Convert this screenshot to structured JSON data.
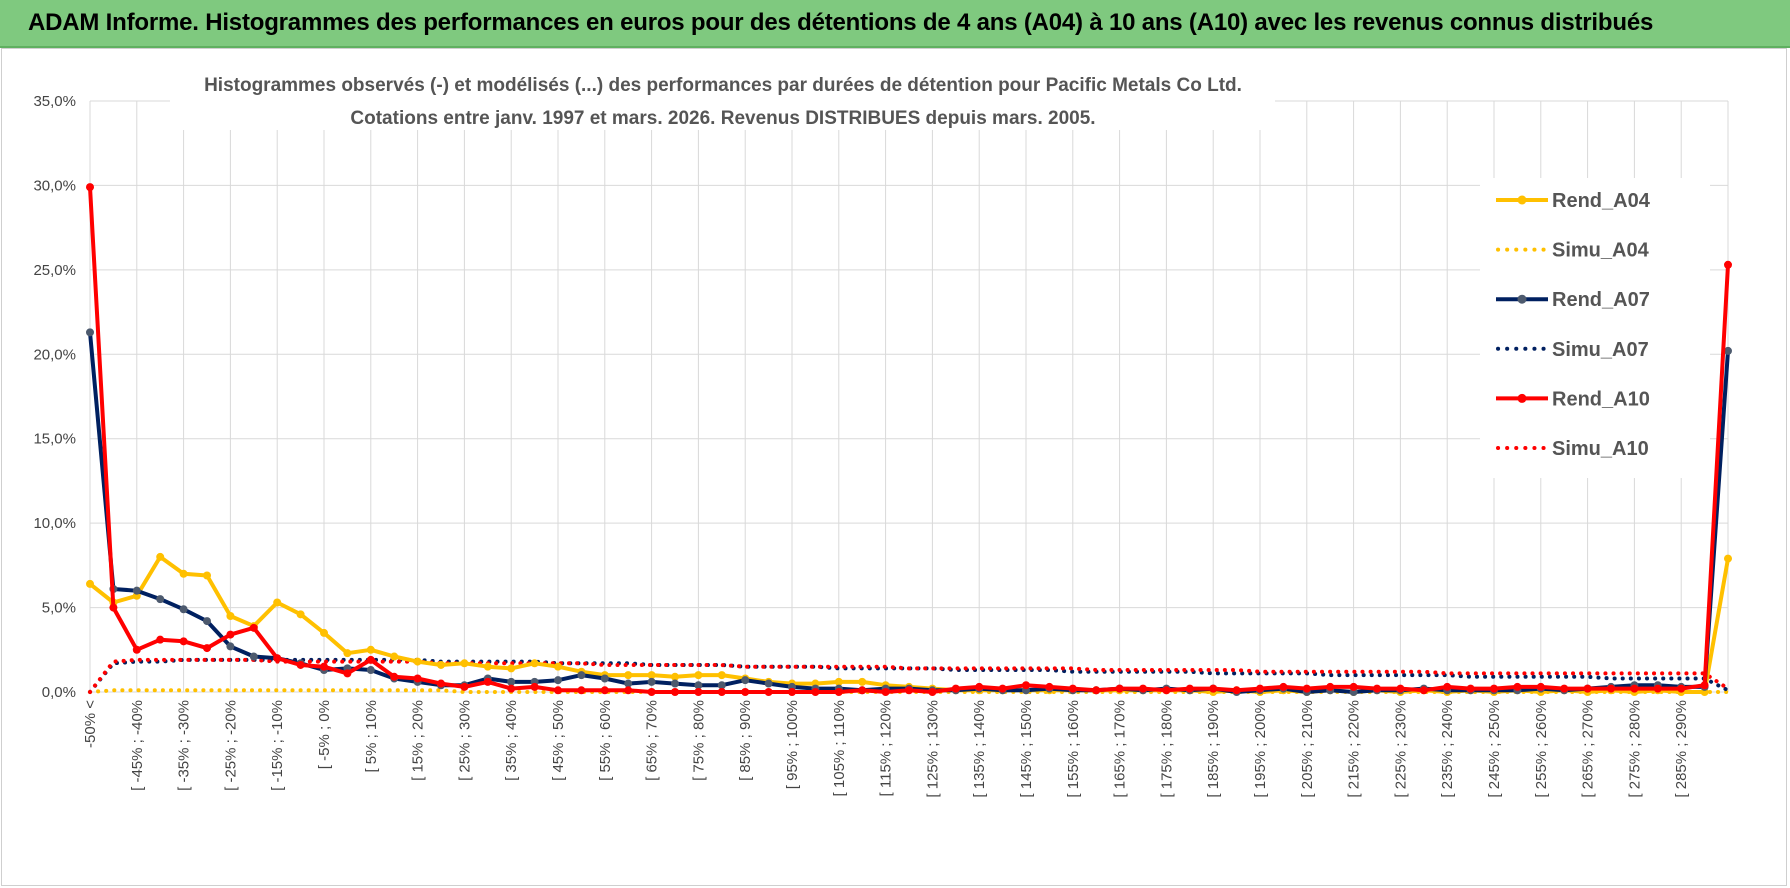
{
  "banner": {
    "title": "ADAM Informe. Histogrammes des performances en euros pour des détentions de 4 ans (A04) à 10 ans (A10) avec les revenus connus distribués"
  },
  "chart_data": {
    "type": "line",
    "title_lines": [
      "Histogrammes observés (-) et modélisés (...) des performances par durées de détention pour Pacific Metals Co Ltd.",
      "Cotations entre janv. 1997 et mars. 2026. Revenus DISTRIBUES depuis mars. 2005."
    ],
    "ylim": [
      0,
      35
    ],
    "y_ticks": [
      "0,0%",
      "5,0%",
      "10,0%",
      "15,0%",
      "20,0%",
      "25,0%",
      "30,0%",
      "35,0%"
    ],
    "y_tick_values": [
      0,
      5,
      10,
      15,
      20,
      25,
      30,
      35
    ],
    "grid": true,
    "legend_position": "right",
    "x_tick_labels": [
      "-50% <",
      "[ -45% ; -40%",
      "[ -35% ; -30%",
      "[ -25% ; -20%",
      "[ -15% ; -10%",
      "[ -5% ; 0%",
      "[ 5% ; 10%",
      "[ 15% ; 20%",
      "[ 25% ; 30%",
      "[ 35% ; 40%",
      "[ 45% ; 50%",
      "[ 55% ; 60%",
      "[ 65% ; 70%",
      "[ 75% ; 80%",
      "[ 85% ; 90%",
      "[ 95% ; 100%",
      "[ 105% ; 110%",
      "[ 115% ; 120%",
      "[ 125% ; 130%",
      "[ 135% ; 140%",
      "[ 145% ; 150%",
      "[ 155% ; 160%",
      "[ 165% ; 170%",
      "[ 175% ; 180%",
      "[ 185% ; 190%",
      "[ 195% ; 200%",
      "[ 205% ; 210%",
      "[ 215% ; 220%",
      "[ 225% ; 230%",
      "[ 235% ; 240%",
      "[ 245% ; 250%",
      "[ 255% ; 260%",
      "[ 265% ; 270%",
      "[ 275% ; 280%",
      "[ 285% ; 290%"
    ],
    "series": [
      {
        "name": "Rend_A04",
        "color": "#ffc000",
        "style": "solid",
        "values": [
          6.4,
          5.3,
          5.7,
          8.0,
          7.0,
          6.9,
          4.5,
          3.9,
          5.3,
          4.6,
          3.5,
          2.3,
          2.5,
          2.1,
          1.8,
          1.6,
          1.7,
          1.5,
          1.4,
          1.7,
          1.5,
          1.2,
          1.0,
          1.0,
          1.0,
          0.9,
          1.0,
          1.0,
          0.8,
          0.6,
          0.5,
          0.5,
          0.6,
          0.6,
          0.4,
          0.3,
          0.2,
          0.1,
          0.1,
          0.1,
          0.1,
          0.1,
          0.1,
          0.1,
          0.1,
          0.1,
          0.1,
          0.1,
          0.0,
          0.1,
          0.0,
          0.1,
          0.0,
          0.1,
          0.0,
          0.1,
          0.0,
          0.1,
          0.0,
          0.1,
          0.0,
          0.1,
          0.0,
          0.1,
          0.0,
          0.1,
          0.0,
          0.1,
          0.0,
          0.0,
          7.9
        ]
      },
      {
        "name": "Simu_A04",
        "color": "#ffc000",
        "style": "dotted",
        "values": [
          0.0,
          0.1,
          0.1,
          0.1,
          0.1,
          0.1,
          0.1,
          0.1,
          0.1,
          0.1,
          0.1,
          0.1,
          0.1,
          0.1,
          0.1,
          0.1,
          0.0,
          0.0,
          0.0,
          0.0,
          0.0,
          0.0,
          0.0,
          0.0,
          0.0,
          0.0,
          0.0,
          0.0,
          0.0,
          0.0,
          0.0,
          0.0,
          0.0,
          0.0,
          0.0,
          0.0,
          0.0,
          0.0,
          0.0,
          0.0,
          0.0,
          0.0,
          0.0,
          0.0,
          0.0,
          0.0,
          0.0,
          0.0,
          0.0,
          0.0,
          0.0,
          0.0,
          0.0,
          0.0,
          0.0,
          0.0,
          0.0,
          0.0,
          0.0,
          0.0,
          0.0,
          0.0,
          0.0,
          0.0,
          0.0,
          0.0,
          0.0,
          0.0,
          0.0,
          0.0,
          0.0
        ]
      },
      {
        "name": "Rend_A07",
        "color": "#002060",
        "marker_color": "#4d5a6e",
        "style": "solid",
        "values": [
          21.3,
          6.1,
          6.0,
          5.5,
          4.9,
          4.2,
          2.7,
          2.1,
          2.0,
          1.7,
          1.3,
          1.4,
          1.3,
          0.8,
          0.6,
          0.4,
          0.4,
          0.8,
          0.6,
          0.6,
          0.7,
          1.0,
          0.8,
          0.5,
          0.6,
          0.5,
          0.4,
          0.4,
          0.7,
          0.5,
          0.3,
          0.2,
          0.2,
          0.1,
          0.2,
          0.2,
          0.1,
          0.1,
          0.2,
          0.1,
          0.1,
          0.2,
          0.1,
          0.1,
          0.2,
          0.1,
          0.2,
          0.1,
          0.2,
          0.0,
          0.1,
          0.2,
          0.0,
          0.1,
          0.0,
          0.1,
          0.1,
          0.2,
          0.1,
          0.1,
          0.1,
          0.1,
          0.2,
          0.1,
          0.2,
          0.3,
          0.4,
          0.4,
          0.3,
          0.3,
          20.2
        ]
      },
      {
        "name": "Simu_A07",
        "color": "#002060",
        "style": "dotted",
        "values": [
          0.0,
          1.7,
          1.8,
          1.8,
          1.9,
          1.9,
          1.9,
          1.9,
          1.9,
          1.9,
          1.9,
          1.9,
          1.9,
          1.9,
          1.9,
          1.8,
          1.8,
          1.8,
          1.8,
          1.8,
          1.7,
          1.7,
          1.7,
          1.7,
          1.6,
          1.6,
          1.6,
          1.6,
          1.5,
          1.5,
          1.5,
          1.5,
          1.4,
          1.4,
          1.4,
          1.4,
          1.4,
          1.3,
          1.3,
          1.3,
          1.3,
          1.3,
          1.2,
          1.2,
          1.2,
          1.2,
          1.2,
          1.2,
          1.1,
          1.1,
          1.1,
          1.1,
          1.1,
          1.0,
          1.0,
          1.0,
          1.0,
          1.0,
          1.0,
          0.9,
          0.9,
          0.9,
          0.9,
          0.9,
          0.9,
          0.8,
          0.8,
          0.8,
          0.8,
          0.8,
          0.1
        ]
      },
      {
        "name": "Rend_A10",
        "color": "#ff0000",
        "style": "solid",
        "values": [
          29.9,
          5.0,
          2.5,
          3.1,
          3.0,
          2.6,
          3.4,
          3.8,
          2.0,
          1.6,
          1.5,
          1.1,
          1.9,
          0.9,
          0.8,
          0.5,
          0.3,
          0.6,
          0.2,
          0.3,
          0.1,
          0.1,
          0.1,
          0.1,
          0.0,
          0.0,
          0.0,
          0.0,
          0.0,
          0.0,
          0.0,
          0.0,
          0.0,
          0.1,
          0.0,
          0.1,
          0.0,
          0.2,
          0.3,
          0.2,
          0.4,
          0.3,
          0.2,
          0.1,
          0.2,
          0.2,
          0.1,
          0.2,
          0.2,
          0.1,
          0.2,
          0.3,
          0.2,
          0.3,
          0.3,
          0.2,
          0.2,
          0.1,
          0.3,
          0.2,
          0.2,
          0.3,
          0.3,
          0.2,
          0.2,
          0.2,
          0.2,
          0.2,
          0.2,
          0.4,
          25.3
        ]
      },
      {
        "name": "Simu_A10",
        "color": "#ff0000",
        "style": "dotted",
        "values": [
          0.0,
          1.8,
          1.9,
          1.9,
          1.9,
          1.9,
          1.9,
          1.9,
          1.8,
          1.8,
          1.8,
          1.8,
          1.8,
          1.8,
          1.8,
          1.7,
          1.7,
          1.7,
          1.7,
          1.7,
          1.7,
          1.7,
          1.6,
          1.6,
          1.6,
          1.6,
          1.6,
          1.6,
          1.5,
          1.5,
          1.5,
          1.5,
          1.5,
          1.5,
          1.5,
          1.4,
          1.4,
          1.4,
          1.4,
          1.4,
          1.4,
          1.4,
          1.4,
          1.3,
          1.3,
          1.3,
          1.3,
          1.3,
          1.3,
          1.3,
          1.2,
          1.2,
          1.2,
          1.2,
          1.2,
          1.2,
          1.2,
          1.2,
          1.1,
          1.1,
          1.1,
          1.1,
          1.1,
          1.1,
          1.1,
          1.1,
          1.1,
          1.1,
          1.1,
          1.1,
          0.2
        ]
      }
    ]
  }
}
